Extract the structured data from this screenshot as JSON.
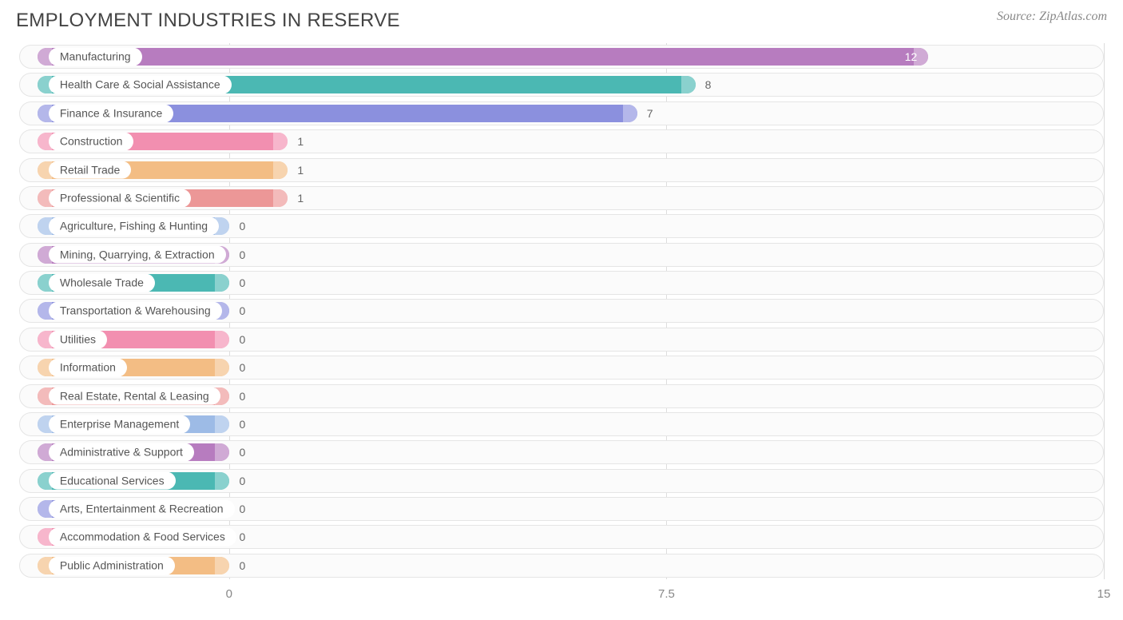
{
  "title": "EMPLOYMENT INDUSTRIES IN RESERVE",
  "source": "Source: ZipAtlas.com",
  "chart": {
    "type": "bar-horizontal",
    "x_min": -3.6,
    "x_max": 15,
    "ticks": [
      {
        "value": 0,
        "label": "0"
      },
      {
        "value": 7.5,
        "label": "7.5"
      },
      {
        "value": 15,
        "label": "15"
      }
    ],
    "bar_start": -3.3,
    "background": "#ffffff",
    "row_bg": "#fbfbfb",
    "row_border": "#e5e5e5",
    "grid_color": "#dddddd",
    "label_color": "#555555",
    "title_color": "#444444",
    "value_inside_color": "#ffffff",
    "value_outside_color": "#666666",
    "title_fontsize": 24,
    "label_fontsize": 14,
    "axis_fontsize": 15,
    "color_cycle": [
      "#b77cbf",
      "#4bb8b3",
      "#8b90de",
      "#f28fb0",
      "#f3bd84",
      "#ec9797",
      "#9dbbe6"
    ],
    "rows": [
      {
        "label": "Manufacturing",
        "value": 12,
        "display": "12",
        "color": "#b77cbf",
        "value_inside": true
      },
      {
        "label": "Health Care & Social Assistance",
        "value": 8,
        "display": "8",
        "color": "#4bb8b3",
        "value_inside": false
      },
      {
        "label": "Finance & Insurance",
        "value": 7,
        "display": "7",
        "color": "#8b90de",
        "value_inside": false
      },
      {
        "label": "Construction",
        "value": 1,
        "display": "1",
        "color": "#f28fb0",
        "value_inside": false
      },
      {
        "label": "Retail Trade",
        "value": 1,
        "display": "1",
        "color": "#f3bd84",
        "value_inside": false
      },
      {
        "label": "Professional & Scientific",
        "value": 1,
        "display": "1",
        "color": "#ec9797",
        "value_inside": false
      },
      {
        "label": "Agriculture, Fishing & Hunting",
        "value": 0,
        "display": "0",
        "color": "#9dbbe6",
        "value_inside": false
      },
      {
        "label": "Mining, Quarrying, & Extraction",
        "value": 0,
        "display": "0",
        "color": "#b77cbf",
        "value_inside": false
      },
      {
        "label": "Wholesale Trade",
        "value": 0,
        "display": "0",
        "color": "#4bb8b3",
        "value_inside": false
      },
      {
        "label": "Transportation & Warehousing",
        "value": 0,
        "display": "0",
        "color": "#8b90de",
        "value_inside": false
      },
      {
        "label": "Utilities",
        "value": 0,
        "display": "0",
        "color": "#f28fb0",
        "value_inside": false
      },
      {
        "label": "Information",
        "value": 0,
        "display": "0",
        "color": "#f3bd84",
        "value_inside": false
      },
      {
        "label": "Real Estate, Rental & Leasing",
        "value": 0,
        "display": "0",
        "color": "#ec9797",
        "value_inside": false
      },
      {
        "label": "Enterprise Management",
        "value": 0,
        "display": "0",
        "color": "#9dbbe6",
        "value_inside": false
      },
      {
        "label": "Administrative & Support",
        "value": 0,
        "display": "0",
        "color": "#b77cbf",
        "value_inside": false
      },
      {
        "label": "Educational Services",
        "value": 0,
        "display": "0",
        "color": "#4bb8b3",
        "value_inside": false
      },
      {
        "label": "Arts, Entertainment & Recreation",
        "value": 0,
        "display": "0",
        "color": "#8b90de",
        "value_inside": false
      },
      {
        "label": "Accommodation & Food Services",
        "value": 0,
        "display": "0",
        "color": "#f28fb0",
        "value_inside": false
      },
      {
        "label": "Public Administration",
        "value": 0,
        "display": "0",
        "color": "#f3bd84",
        "value_inside": false
      }
    ]
  }
}
